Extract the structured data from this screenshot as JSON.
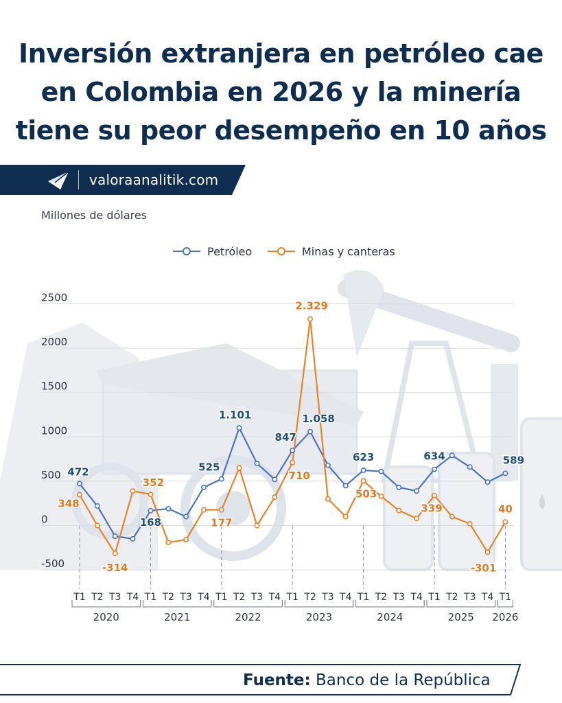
{
  "header": {
    "title_lines": [
      "Inversión extranjera en petróleo cae",
      "en Colombia en 2026 y la minería",
      "tiene su peor desempeño en 10 años"
    ]
  },
  "brand": {
    "site": "valoraanalitik.com",
    "logo_icon": "paper-plane-icon",
    "bar_color": "#0f2d4f"
  },
  "unit_label": "Millones de dólares",
  "source": {
    "label": "Fuente:",
    "name": "Banco de la República"
  },
  "chart_data": {
    "type": "line",
    "title": "",
    "ylabel": "Millones de dólares",
    "ylim": [
      -500,
      2500
    ],
    "yticks": [
      -500,
      0,
      500,
      1000,
      1500,
      2000,
      2500
    ],
    "grid": true,
    "legend_position": "top-center",
    "quarters": [
      "T1",
      "T2",
      "T3",
      "T4",
      "T1",
      "T2",
      "T3",
      "T4",
      "T1",
      "T2",
      "T3",
      "T4",
      "T1",
      "T2",
      "T3",
      "T4",
      "T1",
      "T2",
      "T3",
      "T4",
      "T1",
      "T2",
      "T3",
      "T4",
      "T1"
    ],
    "years": [
      {
        "label": "2020",
        "start": 0,
        "end": 3
      },
      {
        "label": "2021",
        "start": 4,
        "end": 7
      },
      {
        "label": "2022",
        "start": 8,
        "end": 11
      },
      {
        "label": "2023",
        "start": 12,
        "end": 15
      },
      {
        "label": "2024",
        "start": 16,
        "end": 19
      },
      {
        "label": "2025",
        "start": 20,
        "end": 23
      },
      {
        "label": "2026",
        "start": 24,
        "end": 24
      }
    ],
    "series": [
      {
        "name": "Petróleo",
        "color": "#4a73c3",
        "label_color": "#1f4e79",
        "values": [
          472,
          220,
          -120,
          -150,
          168,
          190,
          100,
          430,
          525,
          1101,
          700,
          520,
          847,
          1058,
          680,
          450,
          623,
          610,
          430,
          390,
          634,
          790,
          660,
          490,
          589
        ],
        "labeled": [
          0,
          4,
          8,
          9,
          12,
          13,
          16,
          20,
          24
        ]
      },
      {
        "name": "Minas y canteras",
        "color": "#e8832a",
        "label_color": "#e07a20",
        "values": [
          348,
          0,
          -314,
          390,
          352,
          -190,
          -160,
          177,
          177,
          650,
          0,
          320,
          710,
          2329,
          300,
          100,
          503,
          330,
          170,
          80,
          339,
          100,
          20,
          -301,
          40
        ],
        "labeled": [
          0,
          2,
          4,
          8,
          12,
          13,
          16,
          20,
          23,
          24
        ]
      }
    ]
  }
}
